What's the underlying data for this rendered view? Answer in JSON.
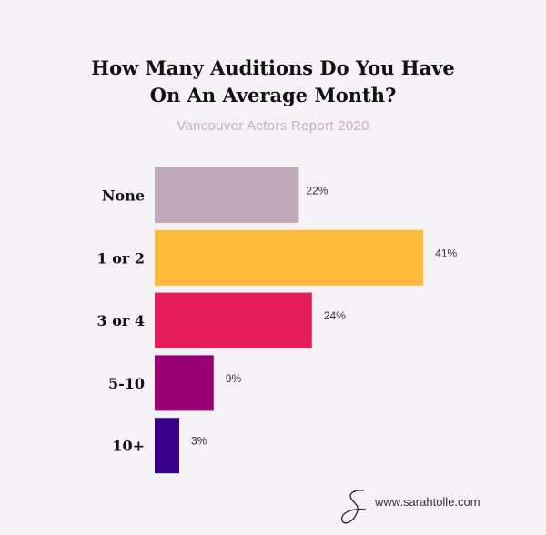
{
  "chart_data": {
    "type": "bar",
    "orientation": "horizontal",
    "title_line1": "How Many Auditions Do You Have",
    "title_line2": "On An Average Month?",
    "subtitle": "Vancouver Actors Report 2020",
    "categories": [
      "None",
      "1 or 2",
      "3 or 4",
      "5-10",
      "10+"
    ],
    "values": [
      22,
      41,
      24,
      9,
      3
    ],
    "value_labels": [
      "22%",
      "41%",
      "24%",
      "9%",
      "3%"
    ],
    "colors": [
      "#c2aabd",
      "#ffbb3b",
      "#e51e5b",
      "#970074",
      "#380085"
    ],
    "xlabel": "",
    "ylabel": "",
    "grid": false
  },
  "footer": {
    "website": "www.sarahtolle.com",
    "logo_text": "S"
  }
}
